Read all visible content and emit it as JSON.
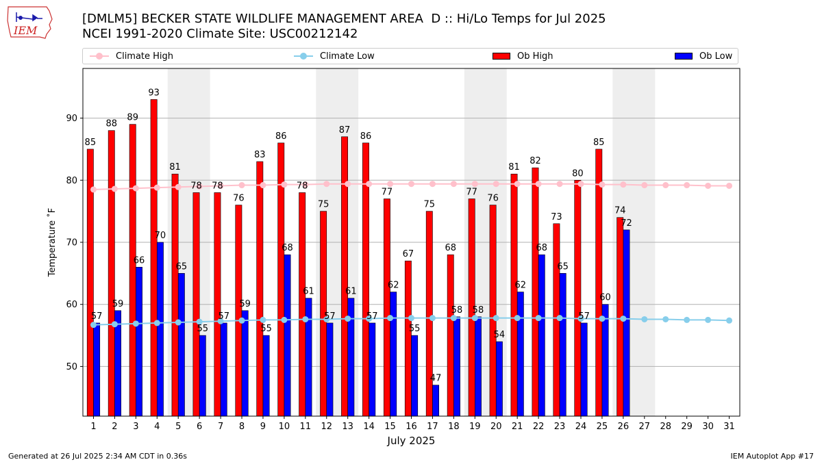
{
  "header": {
    "title_line1": "[DMLM5] BECKER STATE WILDLIFE MANAGEMENT AREA  D :: Hi/Lo Temps for Jul 2025",
    "title_line2": "NCEI 1991-2020 Climate Site: USC00212142"
  },
  "logo": {
    "text": "IEM",
    "icon": "iowa-map-weather-station-icon"
  },
  "legend": {
    "placement": "top, above plot, horizontal",
    "items": [
      {
        "label": "Climate High",
        "color": "#ffc0cb",
        "kind": "line-marker"
      },
      {
        "label": "Climate Low",
        "color": "#87ceeb",
        "kind": "line-marker"
      },
      {
        "label": "Ob High",
        "color": "#ff0000",
        "kind": "bar"
      },
      {
        "label": "Ob Low",
        "color": "#0000ff",
        "kind": "bar"
      }
    ]
  },
  "footer": {
    "left": "Generated at 26 Jul 2025 2:34 AM CDT in 0.36s",
    "right": "IEM Autoplot App #17"
  },
  "chart_data": {
    "type": "bar",
    "title": "[DMLM5] BECKER STATE WILDLIFE MANAGEMENT AREA  D :: Hi/Lo Temps for Jul 2025",
    "xlabel": "July 2025",
    "ylabel": "Temperature ˚F",
    "ylim": [
      42,
      98
    ],
    "xlim": [
      0.5,
      31.5
    ],
    "yticks": [
      50,
      60,
      70,
      80,
      90
    ],
    "grid": "horizontal",
    "days": [
      1,
      2,
      3,
      4,
      5,
      6,
      7,
      8,
      9,
      10,
      11,
      12,
      13,
      14,
      15,
      16,
      17,
      18,
      19,
      20,
      21,
      22,
      23,
      24,
      25,
      26,
      27,
      28,
      29,
      30,
      31
    ],
    "weekend_shading": [
      [
        5,
        6
      ],
      [
        12,
        13
      ],
      [
        19,
        20
      ],
      [
        26,
        27
      ]
    ],
    "shade_color": "#eeeeee",
    "series": [
      {
        "name": "Ob High",
        "color": "#ff0000",
        "kind": "bar",
        "x": [
          1,
          2,
          3,
          4,
          5,
          6,
          7,
          8,
          9,
          10,
          11,
          12,
          13,
          14,
          15,
          16,
          17,
          18,
          19,
          20,
          21,
          22,
          23,
          24,
          25,
          26
        ],
        "values": [
          85,
          88,
          89,
          93,
          81,
          78,
          78,
          76,
          83,
          86,
          78,
          75,
          87,
          86,
          77,
          67,
          75,
          68,
          77,
          76,
          81,
          82,
          73,
          80,
          85,
          74
        ]
      },
      {
        "name": "Ob Low",
        "color": "#0000ff",
        "kind": "bar",
        "x": [
          1,
          2,
          3,
          4,
          5,
          6,
          7,
          8,
          9,
          10,
          11,
          12,
          13,
          14,
          15,
          16,
          17,
          18,
          19,
          20,
          21,
          22,
          23,
          24,
          25,
          26
        ],
        "values": [
          57,
          59,
          66,
          70,
          65,
          55,
          57,
          59,
          55,
          68,
          61,
          57,
          61,
          57,
          62,
          55,
          47,
          58,
          58,
          54,
          62,
          68,
          65,
          57,
          60,
          72
        ]
      },
      {
        "name": "Climate High",
        "color": "#ffc0cb",
        "kind": "line",
        "x": [
          1,
          2,
          3,
          4,
          5,
          6,
          7,
          8,
          9,
          10,
          11,
          12,
          13,
          14,
          15,
          16,
          17,
          18,
          19,
          20,
          21,
          22,
          23,
          24,
          25,
          26,
          27,
          28,
          29,
          30,
          31
        ],
        "values": [
          78.5,
          78.6,
          78.7,
          78.8,
          78.9,
          79.0,
          79.1,
          79.2,
          79.2,
          79.3,
          79.3,
          79.4,
          79.4,
          79.4,
          79.4,
          79.4,
          79.4,
          79.4,
          79.4,
          79.4,
          79.4,
          79.4,
          79.4,
          79.4,
          79.3,
          79.3,
          79.2,
          79.2,
          79.2,
          79.1,
          79.1
        ]
      },
      {
        "name": "Climate Low",
        "color": "#87ceeb",
        "kind": "line",
        "x": [
          1,
          2,
          3,
          4,
          5,
          6,
          7,
          8,
          9,
          10,
          11,
          12,
          13,
          14,
          15,
          16,
          17,
          18,
          19,
          20,
          21,
          22,
          23,
          24,
          25,
          26,
          27,
          28,
          29,
          30,
          31
        ],
        "values": [
          56.7,
          56.8,
          56.9,
          57.0,
          57.1,
          57.2,
          57.3,
          57.4,
          57.5,
          57.5,
          57.6,
          57.6,
          57.7,
          57.7,
          57.8,
          57.8,
          57.8,
          57.8,
          57.8,
          57.8,
          57.8,
          57.8,
          57.8,
          57.7,
          57.7,
          57.7,
          57.6,
          57.6,
          57.5,
          57.5,
          57.4
        ]
      }
    ]
  }
}
